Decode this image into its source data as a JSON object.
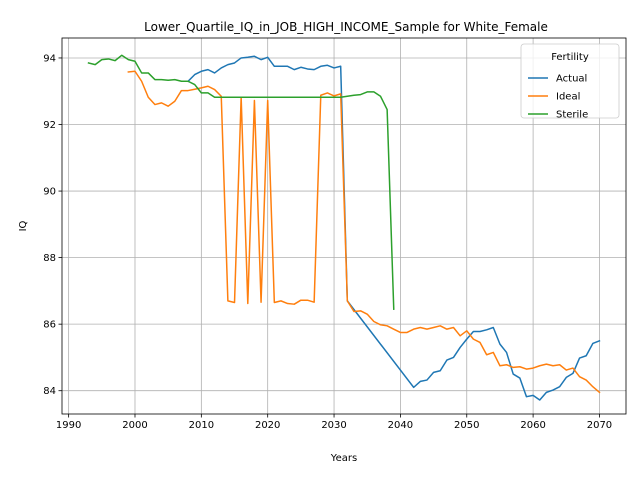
{
  "chart_data": {
    "type": "line",
    "title": "Lower_Quartile_IQ_in_JOB_HIGH_INCOME_Sample for White_Female",
    "xlabel": "Years",
    "ylabel": "IQ",
    "xlim": [
      1989,
      2074
    ],
    "ylim": [
      83.3,
      94.6
    ],
    "xticks": [
      1990,
      2000,
      2010,
      2020,
      2030,
      2040,
      2050,
      2060,
      2070
    ],
    "yticks": [
      84,
      86,
      88,
      90,
      92,
      94
    ],
    "grid": true,
    "legend": {
      "title": "Fertility",
      "placement": "top-right"
    },
    "series": [
      {
        "name": "Actual",
        "color": "#1f77b4",
        "x": [
          2008,
          2009,
          2010,
          2011,
          2012,
          2013,
          2014,
          2015,
          2016,
          2017,
          2018,
          2019,
          2020,
          2021,
          2022,
          2023,
          2024,
          2025,
          2026,
          2027,
          2028,
          2029,
          2030,
          2031,
          2032,
          2042,
          2043,
          2044,
          2045,
          2046,
          2047,
          2048,
          2049,
          2050,
          2051,
          2052,
          2053,
          2054,
          2055,
          2056,
          2057,
          2058,
          2059,
          2060,
          2061,
          2062,
          2063,
          2064,
          2065,
          2066,
          2067,
          2068,
          2069,
          2070
        ],
        "y": [
          93.3,
          93.5,
          93.6,
          93.65,
          93.55,
          93.7,
          93.8,
          93.85,
          94.0,
          94.02,
          94.05,
          93.95,
          94.02,
          93.75,
          93.75,
          93.75,
          93.65,
          93.72,
          93.67,
          93.65,
          93.75,
          93.78,
          93.7,
          93.75,
          86.7,
          84.1,
          84.28,
          84.32,
          84.55,
          84.6,
          84.92,
          85.0,
          85.3,
          85.55,
          85.78,
          85.78,
          85.83,
          85.9,
          85.4,
          85.15,
          84.5,
          84.38,
          83.82,
          83.86,
          83.72,
          83.95,
          84.02,
          84.12,
          84.4,
          84.52,
          84.98,
          85.05,
          85.42,
          85.5
        ]
      },
      {
        "name": "Ideal",
        "color": "#ff7f0e",
        "x": [
          1999,
          2000,
          2001,
          2002,
          2003,
          2004,
          2005,
          2006,
          2007,
          2008,
          2009,
          2010,
          2011,
          2012,
          2013,
          2014,
          2015,
          2016,
          2017,
          2018,
          2019,
          2020,
          2021,
          2022,
          2023,
          2024,
          2025,
          2026,
          2027,
          2028,
          2029,
          2030,
          2031,
          2032,
          2033,
          2034,
          2035,
          2036,
          2037,
          2038,
          2039,
          2040,
          2041,
          2042,
          2043,
          2044,
          2045,
          2046,
          2047,
          2048,
          2049,
          2050,
          2051,
          2052,
          2053,
          2054,
          2055,
          2056,
          2057,
          2058,
          2059,
          2060,
          2061,
          2062,
          2063,
          2064,
          2065,
          2066,
          2067,
          2068,
          2069,
          2070
        ],
        "y": [
          93.58,
          93.6,
          93.3,
          92.82,
          92.6,
          92.65,
          92.55,
          92.7,
          93.02,
          93.02,
          93.06,
          93.1,
          93.15,
          93.05,
          92.85,
          86.7,
          86.65,
          92.82,
          86.62,
          92.72,
          86.66,
          92.72,
          86.65,
          86.7,
          86.62,
          86.6,
          86.72,
          86.72,
          86.66,
          92.88,
          92.95,
          92.86,
          92.92,
          86.7,
          86.38,
          86.4,
          86.3,
          86.08,
          85.98,
          85.95,
          85.85,
          85.75,
          85.75,
          85.85,
          85.9,
          85.85,
          85.9,
          85.95,
          85.85,
          85.9,
          85.65,
          85.8,
          85.55,
          85.45,
          85.08,
          85.15,
          84.75,
          84.78,
          84.7,
          84.72,
          84.65,
          84.68,
          84.75,
          84.8,
          84.75,
          84.78,
          84.62,
          84.68,
          84.42,
          84.32,
          84.12,
          83.95
        ]
      },
      {
        "name": "Sterile",
        "color": "#2ca02c",
        "x": [
          1993,
          1994,
          1995,
          1996,
          1997,
          1998,
          1999,
          2000,
          2001,
          2002,
          2003,
          2004,
          2005,
          2006,
          2007,
          2008,
          2009,
          2010,
          2011,
          2012,
          2013,
          2014,
          2015,
          2016,
          2017,
          2018,
          2019,
          2020,
          2021,
          2022,
          2023,
          2024,
          2025,
          2026,
          2027,
          2028,
          2029,
          2030,
          2031,
          2032,
          2033,
          2034,
          2035,
          2036,
          2037,
          2038,
          2039
        ],
        "y": [
          93.85,
          93.8,
          93.95,
          93.97,
          93.92,
          94.08,
          93.95,
          93.9,
          93.55,
          93.55,
          93.35,
          93.35,
          93.33,
          93.35,
          93.3,
          93.3,
          93.2,
          92.95,
          92.95,
          92.82,
          92.82,
          92.82,
          92.82,
          92.82,
          92.82,
          92.82,
          92.82,
          92.82,
          92.82,
          92.82,
          92.82,
          92.82,
          92.82,
          92.82,
          92.82,
          92.82,
          92.82,
          92.82,
          92.82,
          92.85,
          92.88,
          92.9,
          92.98,
          92.98,
          92.85,
          92.45,
          86.45
        ]
      }
    ]
  }
}
